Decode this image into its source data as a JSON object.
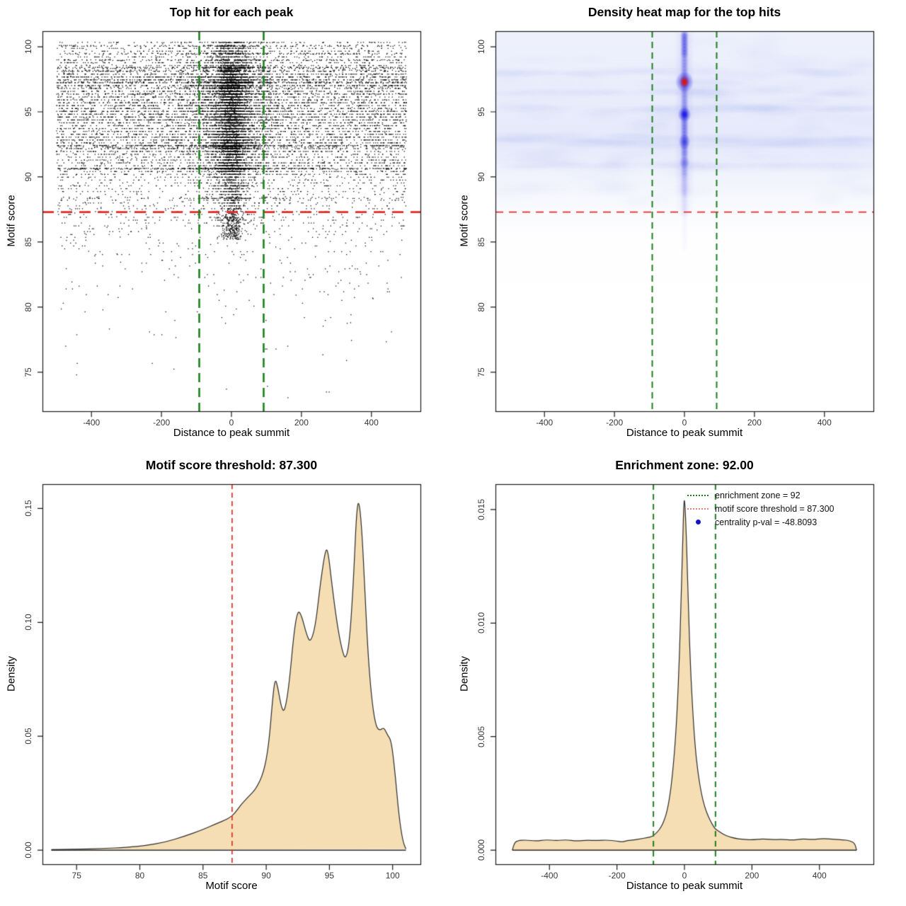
{
  "figure": {
    "background": "#ffffff"
  },
  "colors": {
    "red": "#e62b26",
    "salmon": "#f08080",
    "green": "#1c7f1c",
    "legend_blue": "#1414cc",
    "heat_blue": "#2323d9",
    "heat_red": "#e01f1a",
    "area_fill": "#f5deb3",
    "curve_stroke": "#2b2b2b",
    "axis": "#1a1a1a",
    "point": "#000000"
  },
  "chart_data": [
    {
      "type": "scatter",
      "title": "Top hit for each peak",
      "xlabel": "Distance to peak summit",
      "ylabel": "Motif score",
      "xlim": [
        -540,
        540
      ],
      "ylim": [
        72,
        101.2
      ],
      "xticks": [
        -400,
        -200,
        0,
        200,
        400
      ],
      "yticks": [
        75,
        80,
        85,
        90,
        95,
        100
      ],
      "motif_score_threshold": 87.3,
      "enrichment_zone": [
        -92,
        92
      ],
      "render_params": {
        "seed": 42,
        "n_background": 9000,
        "n_cluster": 4300,
        "n_core": 2600,
        "n_tongue": 300,
        "x_range": [
          -500,
          500
        ],
        "cluster_sigma": [
          26,
          60
        ],
        "cluster_mix": 0.55,
        "core_sigma": 16,
        "score_quantum": 0.22,
        "quantize_prob": 0.88,
        "score_max": 100.35,
        "extra_bands": [
          {
            "s": 100.04,
            "n": 130
          },
          {
            "s": 99.5,
            "n": 110
          },
          {
            "s": 98.95,
            "n": 120
          },
          {
            "s": 98.42,
            "n": 240
          },
          {
            "s": 98.2,
            "n": 130
          },
          {
            "s": 97.3,
            "n": 150
          },
          {
            "s": 96.9,
            "n": 110
          },
          {
            "s": 96.4,
            "n": 110
          },
          {
            "s": 92.42,
            "n": 260
          },
          {
            "s": 92.3,
            "n": 150
          },
          {
            "s": 90.66,
            "n": 220
          },
          {
            "s": 90.6,
            "n": 130
          },
          {
            "s": 88.35,
            "n": 110
          }
        ]
      }
    },
    {
      "type": "heatmap",
      "title": "Density heat map for the top hits",
      "xlabel": "Distance to peak summit",
      "ylabel": "Motif score",
      "xlim": [
        -540,
        540
      ],
      "ylim": [
        72,
        101.2
      ],
      "xticks": [
        -400,
        -200,
        0,
        200,
        400
      ],
      "yticks": [
        75,
        80,
        85,
        90,
        95,
        100
      ],
      "motif_score_threshold": 87.3,
      "enrichment_zone": [
        -92,
        92
      ],
      "hotspots": [
        {
          "x": 0,
          "y": 97.3,
          "intensity": 1.0,
          "core": "red"
        },
        {
          "x": 0,
          "y": 94.8,
          "intensity": 0.85
        },
        {
          "x": 0,
          "y": 92.7,
          "intensity": 0.6
        },
        {
          "x": 0,
          "y": 91.1,
          "intensity": 0.4
        }
      ],
      "streak": {
        "x": 0,
        "y_from": 86.8,
        "y_to": 101.2
      },
      "wash_bands": [
        92.6,
        93.0,
        98.0,
        95.2,
        96.5,
        90.8
      ],
      "render_params": {
        "seed": 7,
        "n_wash": 95,
        "n_band": 26
      }
    },
    {
      "type": "area",
      "title": "Motif score threshold: 87.300",
      "xlabel": "Motif score",
      "ylabel": "Density",
      "xlim": [
        72.3,
        102.2
      ],
      "ylim": [
        -0.0062,
        0.1607
      ],
      "xticks": [
        75,
        80,
        85,
        90,
        95,
        100
      ],
      "yticks": [
        0,
        0.05,
        0.1,
        0.15
      ],
      "ytick_labels": [
        "0.00",
        "0.05",
        "0.10",
        "0.15"
      ],
      "threshold_line": {
        "x": 87.3,
        "color_key": "red",
        "style": "dashed"
      },
      "curve": {
        "x": [
          73.0,
          75.0,
          77.0,
          79.0,
          80.5,
          82.0,
          83.5,
          85.0,
          86.0,
          87.0,
          87.5,
          88.0,
          88.6,
          89.2,
          89.8,
          90.2,
          90.5,
          90.7,
          90.9,
          91.2,
          91.45,
          91.8,
          92.2,
          92.5,
          92.8,
          93.2,
          93.5,
          93.9,
          94.3,
          94.7,
          94.9,
          95.2,
          95.6,
          96.0,
          96.3,
          96.6,
          96.9,
          97.15,
          97.35,
          97.6,
          97.85,
          98.1,
          98.4,
          98.7,
          99.0,
          99.3,
          99.6,
          99.9,
          100.2,
          100.5,
          100.8,
          101.05
        ],
        "y": [
          0.0002,
          0.0004,
          0.0007,
          0.0012,
          0.002,
          0.0035,
          0.006,
          0.009,
          0.0115,
          0.0138,
          0.016,
          0.02,
          0.0235,
          0.027,
          0.034,
          0.046,
          0.066,
          0.0755,
          0.072,
          0.0625,
          0.0605,
          0.072,
          0.096,
          0.1055,
          0.103,
          0.0945,
          0.091,
          0.0985,
          0.118,
          0.1325,
          0.131,
          0.1165,
          0.0995,
          0.0875,
          0.0835,
          0.092,
          0.118,
          0.1495,
          0.154,
          0.138,
          0.108,
          0.082,
          0.0635,
          0.054,
          0.0525,
          0.054,
          0.0505,
          0.048,
          0.0335,
          0.015,
          0.004,
          0.0005
        ]
      }
    },
    {
      "type": "area",
      "title": "Enrichment zone: 92.00",
      "xlabel": "Distance to peak summit",
      "ylabel": "Density",
      "xlim": [
        -560,
        560
      ],
      "ylim": [
        -0.00062,
        0.01612
      ],
      "xticks": [
        -400,
        -200,
        0,
        200,
        400
      ],
      "yticks": [
        0,
        0.005,
        0.01,
        0.015
      ],
      "ytick_labels": [
        "0.000",
        "0.005",
        "0.010",
        "0.015"
      ],
      "enrichment_zone": [
        -92,
        92
      ],
      "curve": {
        "x": [
          -510,
          -505,
          -495,
          -470,
          -440,
          -410,
          -380,
          -350,
          -320,
          -290,
          -260,
          -230,
          -200,
          -185,
          -170,
          -150,
          -130,
          -110,
          -95,
          -80,
          -70,
          -60,
          -50,
          -40,
          -30,
          -22,
          -15,
          -10,
          -5,
          -2,
          0,
          3,
          7,
          12,
          18,
          25,
          32,
          40,
          50,
          60,
          70,
          80,
          90,
          100,
          115,
          130,
          150,
          170,
          200,
          230,
          260,
          290,
          320,
          350,
          380,
          410,
          440,
          470,
          490,
          505,
          510
        ],
        "y": [
          0,
          0.0003,
          0.00042,
          0.00045,
          0.0004,
          0.00046,
          0.00042,
          0.00046,
          0.0004,
          0.00044,
          0.00042,
          0.00045,
          0.0004,
          0.00036,
          0.00042,
          0.00045,
          0.0005,
          0.00055,
          0.0006,
          0.0008,
          0.001,
          0.0013,
          0.0018,
          0.0027,
          0.0042,
          0.006,
          0.0085,
          0.011,
          0.0137,
          0.0152,
          0.0155,
          0.0148,
          0.0132,
          0.0105,
          0.008,
          0.006,
          0.0045,
          0.0034,
          0.0025,
          0.0019,
          0.0015,
          0.0012,
          0.00095,
          0.00085,
          0.0007,
          0.0006,
          0.00052,
          0.00048,
          0.00045,
          0.0005,
          0.00046,
          0.00048,
          0.00044,
          0.0005,
          0.00046,
          0.00052,
          0.00048,
          0.00046,
          0.00042,
          0.0003,
          0
        ]
      },
      "legend": [
        {
          "label": "enrichment zone = 92",
          "marker": "dotted-line",
          "color": "#1c7f1c"
        },
        {
          "label": "motif score threshold = 87.300",
          "marker": "dotted-line",
          "color": "#f08080"
        },
        {
          "label": "centrality p-val = -48.8093",
          "marker": "dot",
          "color": "#1414cc"
        }
      ]
    }
  ]
}
